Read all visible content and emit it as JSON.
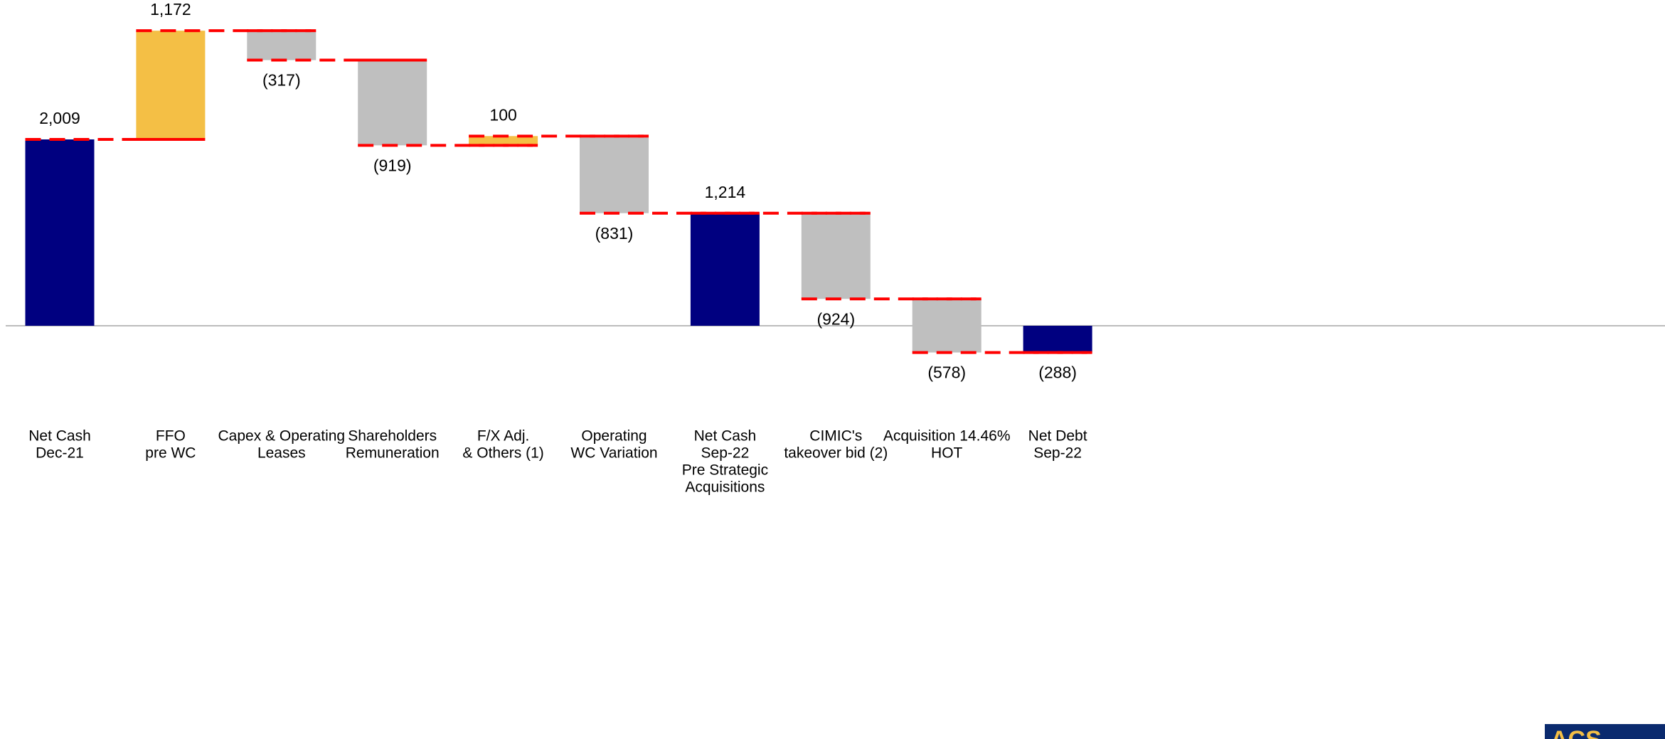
{
  "chart_data": {
    "type": "waterfall",
    "categories": [
      [
        "Net Cash",
        "Dec-21"
      ],
      [
        "FFO",
        "pre WC"
      ],
      [
        "Capex & Operating",
        "Leases"
      ],
      [
        "Shareholders",
        "Remuneration"
      ],
      [
        "F/X Adj.",
        "& Others (1)"
      ],
      [
        "Operating",
        "WC Variation"
      ],
      [
        "Net Cash",
        "Sep-22",
        "Pre Strategic",
        "Acquisitions"
      ],
      [
        "CIMIC's",
        "takeover bid (2)"
      ],
      [
        "Acquisition 14.46%",
        "HOT"
      ],
      [
        "Net Debt",
        "Sep-22"
      ]
    ],
    "measures": [
      "total",
      "relative",
      "relative",
      "relative",
      "relative",
      "relative",
      "total",
      "relative",
      "relative",
      "total"
    ],
    "values": [
      2009,
      1172,
      -317,
      -919,
      100,
      -831,
      1214,
      -924,
      -578,
      -288
    ],
    "value_labels": [
      "2,009",
      "1,172",
      "(317)",
      "(919)",
      "100",
      "(831)",
      "1,214",
      "(924)",
      "(578)",
      "(288)"
    ],
    "colors": {
      "total": "#000080",
      "increase": "#F4BF45",
      "decrease": "#BFBFBF",
      "connector": "#FF0000",
      "axis": "#A6A6A6"
    },
    "ylim": [
      -4455,
      3512
    ],
    "logo": "ACS"
  }
}
